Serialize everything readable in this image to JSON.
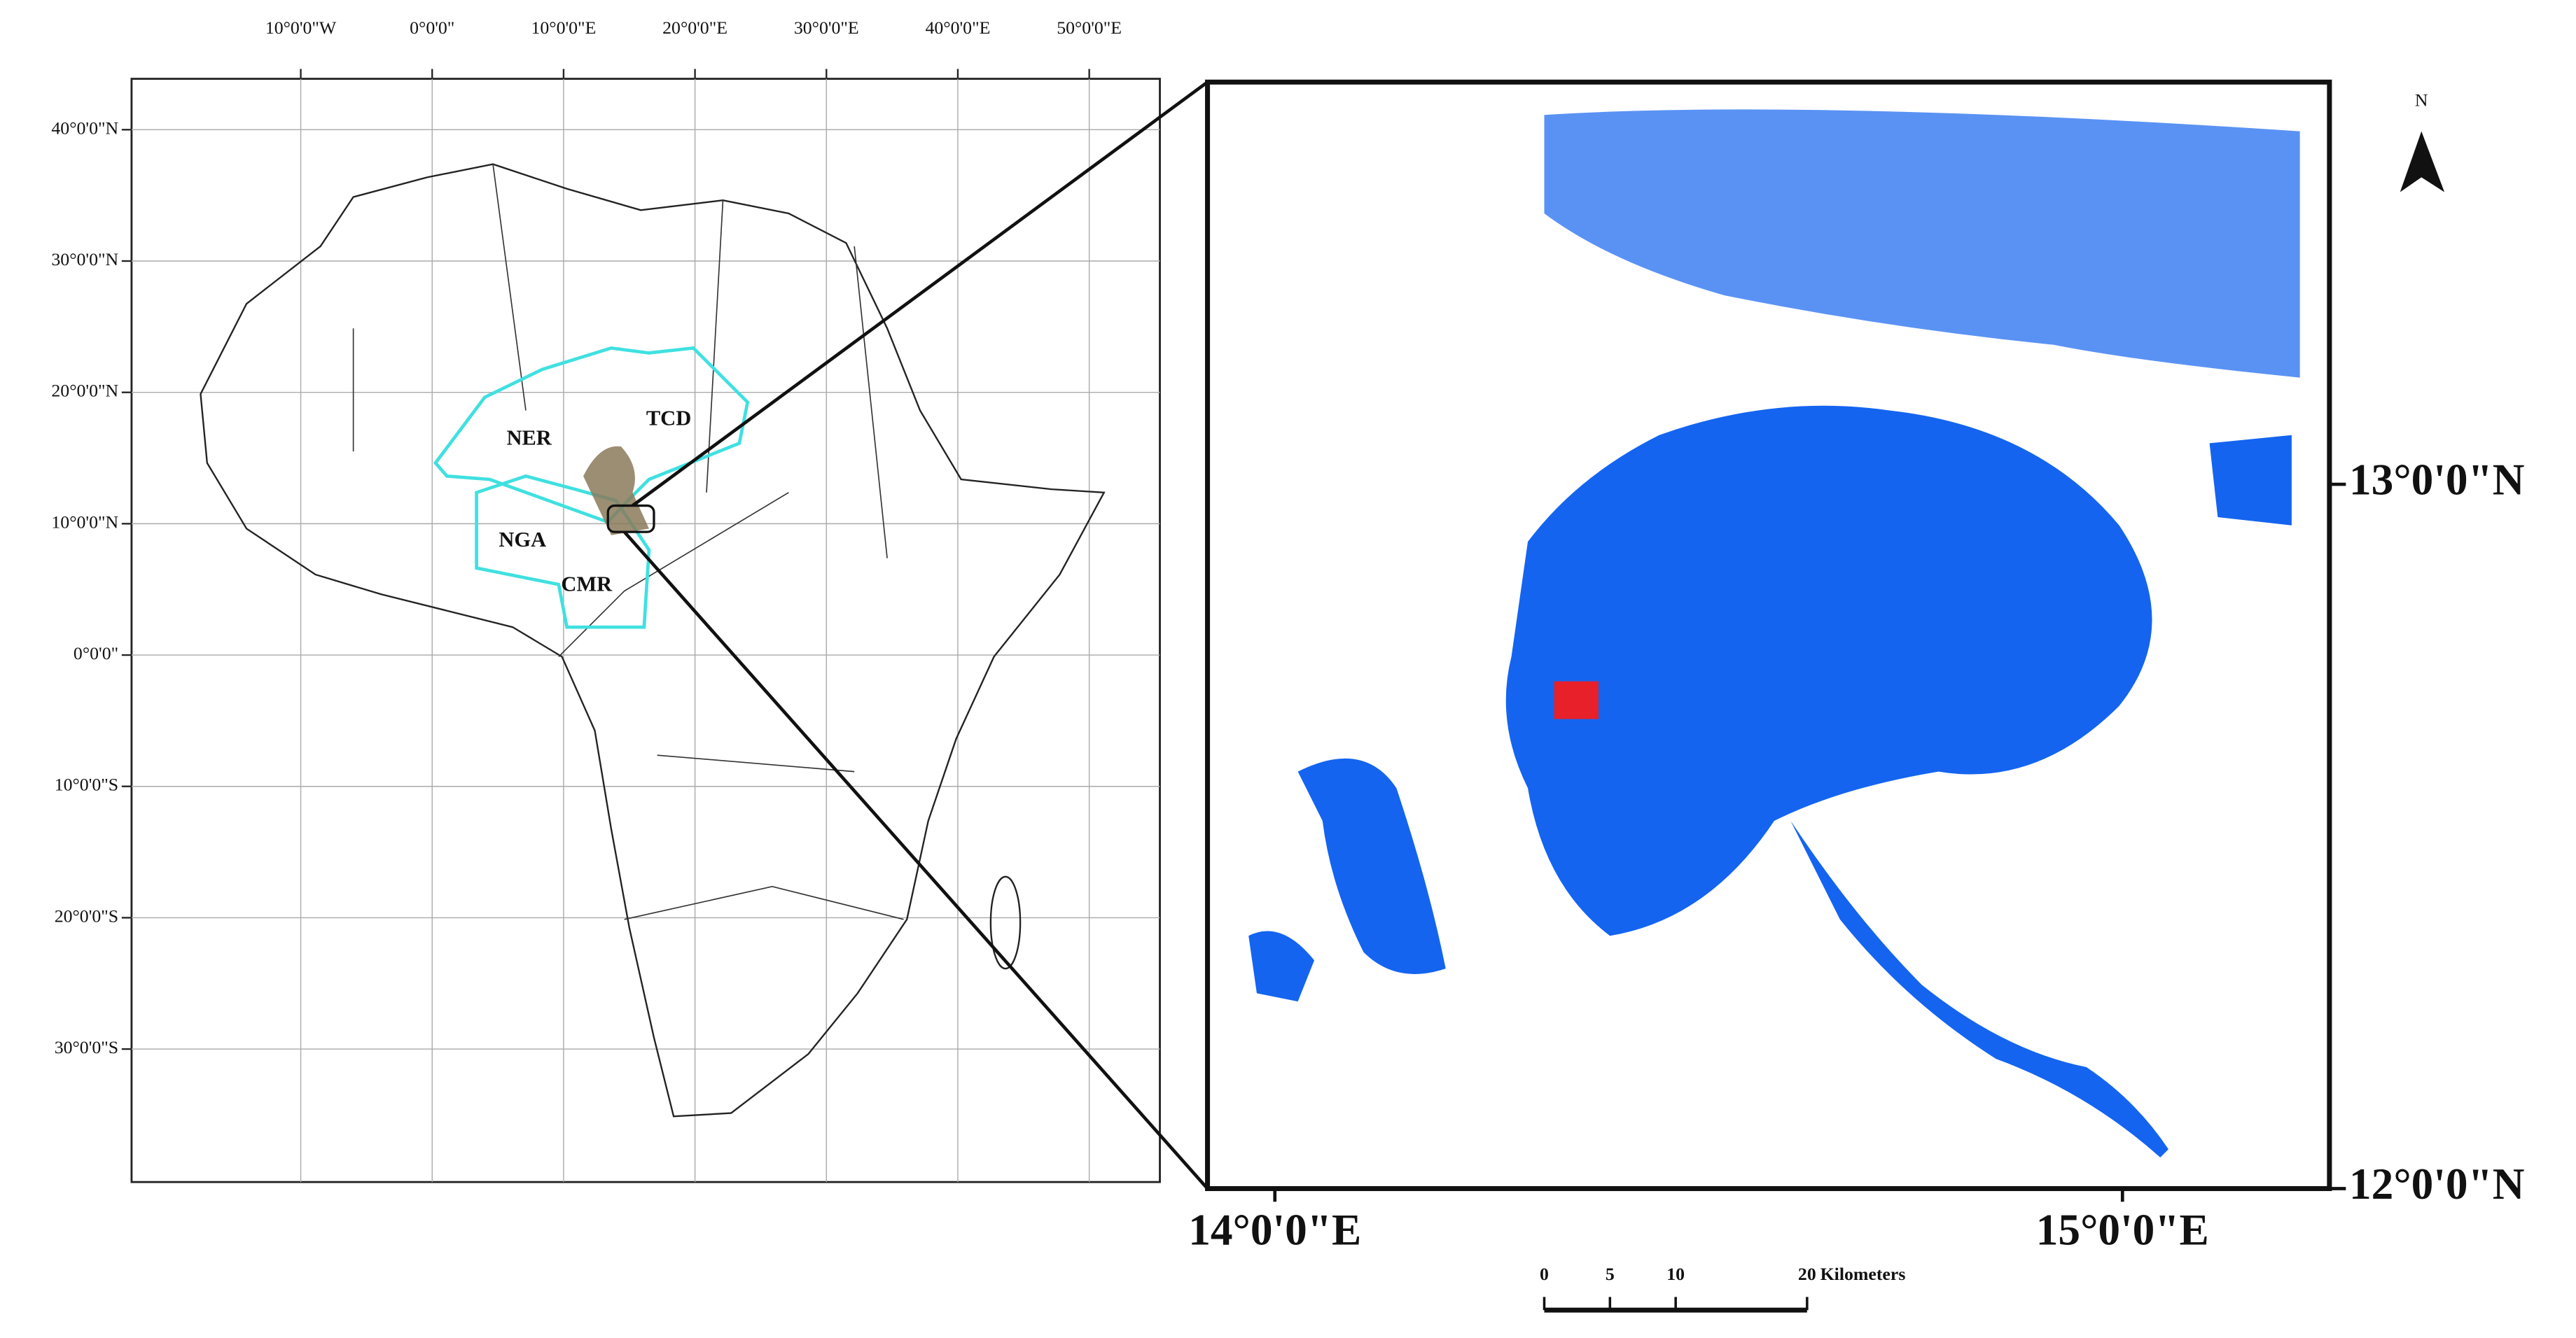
{
  "left_map": {
    "lon_ticks": [
      {
        "value": -10,
        "label": "10°0'0\"W"
      },
      {
        "value": 0,
        "label": "0°0'0\""
      },
      {
        "value": 10,
        "label": "10°0'0\"E"
      },
      {
        "value": 20,
        "label": "20°0'0\"E"
      },
      {
        "value": 30,
        "label": "30°0'0\"E"
      },
      {
        "value": 40,
        "label": "40°0'0\"E"
      },
      {
        "value": 50,
        "label": "50°0'0\"E"
      }
    ],
    "lat_ticks": [
      {
        "value": 40,
        "label": "40°0'0\"N"
      },
      {
        "value": 30,
        "label": "30°0'0\"N"
      },
      {
        "value": 20,
        "label": "20°0'0\"N"
      },
      {
        "value": 10,
        "label": "10°0'0\"N"
      },
      {
        "value": 0,
        "label": "0°0'0\""
      },
      {
        "value": -10,
        "label": "10°0'0\"S"
      },
      {
        "value": -20,
        "label": "20°0'0\"S"
      },
      {
        "value": -30,
        "label": "30°0'0\"S"
      }
    ],
    "countries": [
      "NER",
      "TCD",
      "NGA",
      "CMR"
    ]
  },
  "right_map": {
    "lon_ticks": [
      {
        "value": 14,
        "label": "14°0'0\"E"
      },
      {
        "value": 15,
        "label": "15°0'0\"E"
      }
    ],
    "lat_ticks": [
      {
        "value": 13,
        "label": "13°0'0\"N"
      },
      {
        "value": 12,
        "label": "12°0'0\"N"
      }
    ],
    "north": "N",
    "scale_bar": {
      "ticks": [
        0,
        5,
        10,
        20
      ],
      "unit": "Kilometers"
    }
  }
}
